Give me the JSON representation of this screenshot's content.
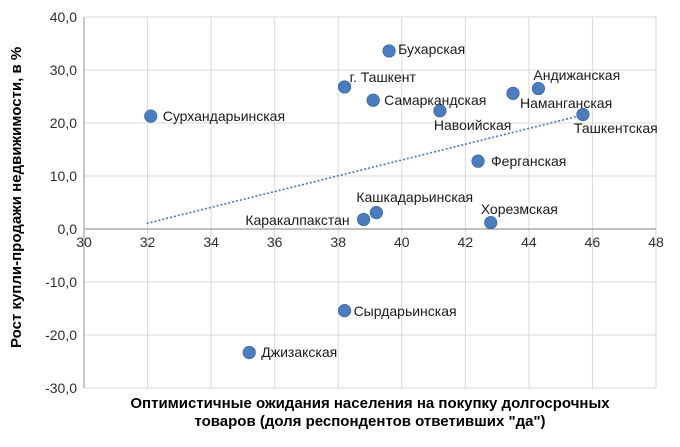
{
  "chart_data": {
    "type": "scatter",
    "title": "",
    "xlabel": "Оптимистичные ожидания населения на покупку долгосрочных товаров (доля респондентов ответивших \"да\")",
    "xlabel_lines": [
      "Оптимистичные ожидания населения на покупку долгосрочных",
      "товаров (доля респондентов ответивших \"да\")"
    ],
    "ylabel": "Рост купли-продажи недвижимости, в %",
    "xlim": [
      30,
      48
    ],
    "ylim": [
      -30,
      40
    ],
    "grid": true,
    "legend": "none",
    "x_ticks": [
      {
        "value": 30,
        "label": "30"
      },
      {
        "value": 32,
        "label": "32"
      },
      {
        "value": 34,
        "label": "34"
      },
      {
        "value": 36,
        "label": "36"
      },
      {
        "value": 38,
        "label": "38"
      },
      {
        "value": 40,
        "label": "40"
      },
      {
        "value": 42,
        "label": "42"
      },
      {
        "value": 44,
        "label": "44"
      },
      {
        "value": 46,
        "label": "46"
      },
      {
        "value": 48,
        "label": "48"
      }
    ],
    "y_ticks": [
      {
        "value": 40,
        "label": "40,0"
      },
      {
        "value": 30,
        "label": "30,0"
      },
      {
        "value": 20,
        "label": "20,0"
      },
      {
        "value": 10,
        "label": "10,0"
      },
      {
        "value": 0,
        "label": "0,0"
      },
      {
        "value": -10,
        "label": "-10,0"
      },
      {
        "value": -20,
        "label": "-20,0"
      },
      {
        "value": -30,
        "label": "-30,0"
      }
    ],
    "colors": {
      "marker": "#4A7CBE",
      "marker_border": "#41689F",
      "trendline": "#4E82C4",
      "gridline": "#D9D9D9",
      "axis_line": "#ABABAB",
      "zero_line": "#ABABAB",
      "label_text": "#1a1a1a",
      "tick_text": "#2e2e2e"
    },
    "trendline": {
      "style": "dotted",
      "x1": 32,
      "y1": 1.1,
      "x2": 45.7,
      "y2": 21.5
    },
    "series": [
      {
        "name": "regions",
        "points": [
          {
            "label": "Сурхандарьинская",
            "x": 32.1,
            "y": 21.3,
            "label_anchor": "start",
            "label_dx": 12,
            "label_dy": 0
          },
          {
            "label": "Бухарская",
            "x": 39.6,
            "y": 33.6,
            "label_anchor": "start",
            "label_dx": 9,
            "label_dy": -2
          },
          {
            "label": "г. Ташкент",
            "x": 38.2,
            "y": 26.8,
            "label_anchor": "start",
            "label_dx": 5,
            "label_dy": -10
          },
          {
            "label": "Самаркандская",
            "x": 39.1,
            "y": 24.3,
            "label_anchor": "start",
            "label_dx": 11,
            "label_dy": 0
          },
          {
            "label": "Навоийская",
            "x": 41.2,
            "y": 22.3,
            "label_anchor": "start",
            "label_dx": -6,
            "label_dy": 14
          },
          {
            "label": "Андижанская",
            "x": 44.3,
            "y": 26.5,
            "label_anchor": "start",
            "label_dx": -5,
            "label_dy": -14
          },
          {
            "label": "Наманганская",
            "x": 43.5,
            "y": 25.6,
            "label_anchor": "start",
            "label_dx": 7,
            "label_dy": 10
          },
          {
            "label": "Ташкентская",
            "x": 45.7,
            "y": 21.6,
            "label_anchor": "start",
            "label_dx": -9,
            "label_dy": 13
          },
          {
            "label": "Ферганская",
            "x": 42.4,
            "y": 12.8,
            "label_anchor": "start",
            "label_dx": 13,
            "label_dy": 0
          },
          {
            "label": "Кашкадарьинская",
            "x": 39.2,
            "y": 3.1,
            "label_anchor": "start",
            "label_dx": -20,
            "label_dy": -16
          },
          {
            "label": "Каракалпакстан",
            "x": 38.8,
            "y": 1.8,
            "label_anchor": "end",
            "label_dx": -14,
            "label_dy": 1
          },
          {
            "label": "Хорезмская",
            "x": 42.8,
            "y": 1.2,
            "label_anchor": "start",
            "label_dx": -10,
            "label_dy": -14
          },
          {
            "label": "Сырдарьинская",
            "x": 38.2,
            "y": -15.4,
            "label_anchor": "start",
            "label_dx": 9,
            "label_dy": 0
          },
          {
            "label": "Джизакская",
            "x": 35.2,
            "y": -23.3,
            "label_anchor": "start",
            "label_dx": 12,
            "label_dy": 0
          }
        ]
      }
    ]
  }
}
